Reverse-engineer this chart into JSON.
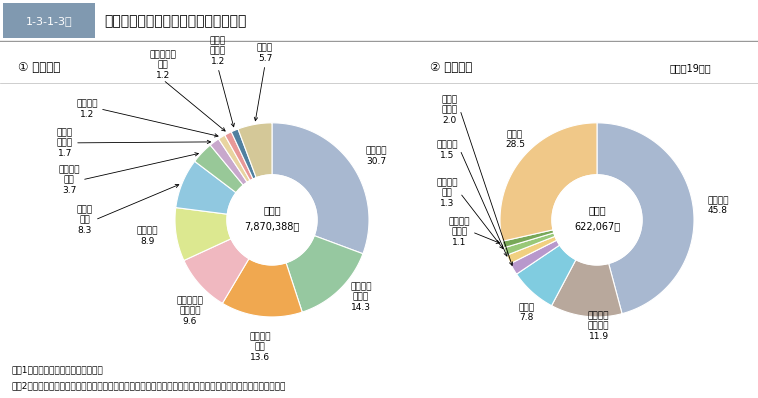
{
  "title_box_text": "1-3-1-3図",
  "title_main": "道交違反取締件数の違反態様別構成比",
  "chart1_header": "① 告知件数",
  "chart2_header": "② 送致件数",
  "year_label": "（平成19年）",
  "chart1_total_line1": "総　数",
  "chart1_total_line2": "7,870,388件",
  "chart2_total_line1": "総　数",
  "chart2_total_line2": "622,067件",
  "note1": "注　1　警察庁交通局の統計による。",
  "note2": "　　2「送致件数」のうち，道路交通法違反に係るものは，非反則事件として直接送致手続を執った件数である。",
  "chart1_slices": [
    {
      "label": "速度超過\n30.7",
      "value": 30.7,
      "color": "#a8b8d0"
    },
    {
      "label": "携帯電話\n使用等\n14.3",
      "value": 14.3,
      "color": "#96c8a0"
    },
    {
      "label": "一時停止\n違反\n13.6",
      "value": 13.6,
      "color": "#f0a850"
    },
    {
      "label": "通行禁止・\n制限違反\n9.6",
      "value": 9.6,
      "color": "#f0b8c0"
    },
    {
      "label": "信号無視\n8.9",
      "value": 8.9,
      "color": "#dce890"
    },
    {
      "label": "駐停車\n違反\n8.3",
      "value": 8.3,
      "color": "#90c8e0"
    },
    {
      "label": "通行区分\n違反\n3.7",
      "value": 3.7,
      "color": "#98c898"
    },
    {
      "label": "踏切不\n停止等\n1.7",
      "value": 1.7,
      "color": "#c8a8cc"
    },
    {
      "label": "整備不良\n1.2",
      "value": 1.2,
      "color": "#e8d4a0"
    },
    {
      "label": "右左折方法\n違反\n1.2",
      "value": 1.2,
      "color": "#e89898"
    },
    {
      "label": "免許証\n不携帯\n1.2",
      "value": 1.2,
      "color": "#5080a0"
    },
    {
      "label": "その他\n5.7",
      "value": 5.7,
      "color": "#d4c898"
    }
  ],
  "chart2_slices": [
    {
      "label": "速度超過\n45.8",
      "value": 45.8,
      "color": "#a8b8d0"
    },
    {
      "label": "酒気帯び\n・酒酔い\n11.9",
      "value": 11.9,
      "color": "#b8a89c"
    },
    {
      "label": "無免許\n7.8",
      "value": 7.8,
      "color": "#80cce0"
    },
    {
      "label": "免許証\n不携帯\n2.0",
      "value": 2.0,
      "color": "#b898cc"
    },
    {
      "label": "信号無視\n1.5",
      "value": 1.5,
      "color": "#f0d080"
    },
    {
      "label": "一時停止\n違反\n1.3",
      "value": 1.3,
      "color": "#98c878"
    },
    {
      "label": "保管場所\n法違反\n1.1",
      "value": 1.1,
      "color": "#78a858"
    },
    {
      "label": "その他\n28.5",
      "value": 28.5,
      "color": "#f0c888"
    }
  ]
}
